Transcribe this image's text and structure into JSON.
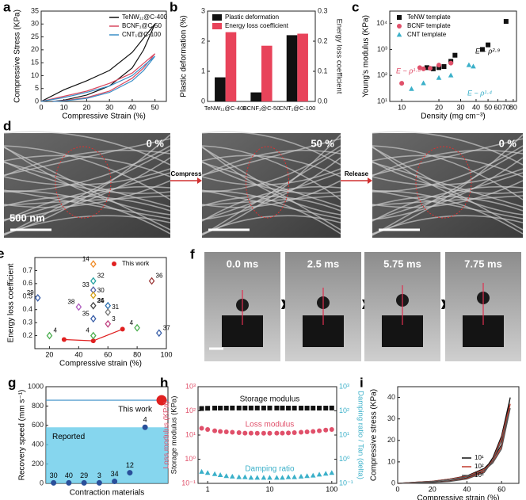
{
  "chart_data": [
    {
      "type": "line",
      "label": "a",
      "xlabel": "Compressive Strain (%)",
      "ylabel": "Compressive Stress (KPa)",
      "xlim": [
        0,
        55
      ],
      "xticks": [
        0,
        10,
        20,
        30,
        40,
        50
      ],
      "ylim": [
        0,
        35
      ],
      "yticks": [
        0,
        5,
        10,
        15,
        20,
        25,
        30,
        35
      ],
      "legend": "upper right",
      "series": [
        {
          "name": "TeNW₁₁@C-400",
          "color": "#111111",
          "x": [
            0,
            10,
            20,
            30,
            40,
            50,
            45,
            40,
            30,
            20,
            10,
            5
          ],
          "values": [
            0,
            4.5,
            8,
            12,
            19,
            30,
            20,
            13,
            6,
            2.5,
            0.5,
            0
          ]
        },
        {
          "name": "BCNF₁@C-50",
          "color": "#d9485f",
          "x": [
            0,
            10,
            20,
            30,
            40,
            50,
            45,
            40,
            30,
            20,
            10,
            5
          ],
          "values": [
            0,
            2,
            4,
            7,
            11,
            18.5,
            13,
            9,
            4,
            1.5,
            0.3,
            0
          ]
        },
        {
          "name": "CNT₁@C-100",
          "color": "#3a8fc7",
          "x": [
            0,
            10,
            20,
            30,
            40,
            50,
            45,
            40,
            30,
            20,
            10,
            5
          ],
          "values": [
            0,
            1.5,
            3.5,
            6,
            10,
            17.5,
            12,
            8,
            3.5,
            1.2,
            0.2,
            0
          ]
        }
      ]
    },
    {
      "type": "bar",
      "label": "b",
      "ylabel": "Plastic deformation (%)",
      "y2label": "Energy loss coefficient",
      "categories": [
        "TeNW₁₁@C-400",
        "BCNF₁@C-50",
        "CNT₁@C-100"
      ],
      "ylim": [
        0,
        3
      ],
      "yticks": [
        0,
        1,
        2,
        3
      ],
      "y2lim": [
        0,
        0.3
      ],
      "y2ticks": [
        {
          "value": 0,
          "label": "0.0"
        },
        0.1,
        0.2,
        0.3
      ],
      "legend": "upper left",
      "series": [
        {
          "name": "Plastic deformation",
          "color": "#111111",
          "values": [
            0.8,
            0.3,
            2.2
          ]
        },
        {
          "name": "Energy loss coefficient",
          "color": "#e8435a",
          "axis": "y2",
          "values": [
            0.23,
            0.185,
            0.225
          ]
        }
      ]
    },
    {
      "type": "scatter",
      "label": "c",
      "xlabel": "Density (mg cm⁻³)",
      "ylabel": "Young's modulus (KPa)",
      "xscale": "log",
      "yscale": "log",
      "xlim": [
        8,
        85
      ],
      "xticks": [
        10,
        20,
        30,
        40,
        50,
        60,
        70,
        80
      ],
      "ylim": [
        10,
        30000
      ],
      "yticks": [
        {
          "value": 10,
          "label": "10¹"
        },
        {
          "value": 100,
          "label": "10²"
        },
        {
          "value": 1000,
          "label": "10³"
        },
        {
          "value": 10000,
          "label": "10⁴"
        }
      ],
      "legend": "upper left",
      "series": [
        {
          "name": "TeNW template",
          "color": "#111111",
          "marker": "square",
          "x": [
            16,
            18,
            20,
            22,
            25,
            27,
            45,
            50,
            70
          ],
          "values": [
            200,
            180,
            200,
            220,
            350,
            600,
            1000,
            1500,
            12000
          ]
        },
        {
          "name": "BCNF template",
          "color": "#e0506a",
          "marker": "circle",
          "x": [
            10,
            14,
            15,
            17,
            20,
            25
          ],
          "values": [
            50,
            200,
            180,
            190,
            250,
            300
          ]
        },
        {
          "name": "CNT template",
          "color": "#3bb0c9",
          "marker": "triangle",
          "x": [
            12,
            15,
            20,
            25,
            35,
            38
          ],
          "values": [
            30,
            50,
            80,
            100,
            250,
            220
          ]
        }
      ],
      "annotations": [
        {
          "text": "E ~ ρ²·⁹",
          "color": "#111111"
        },
        {
          "text": "E ~ ρ¹·⁸",
          "color": "#e0506a"
        },
        {
          "text": "E ~ ρ¹·⁴",
          "color": "#3bb0c9"
        }
      ]
    },
    {
      "type": "scatter",
      "label": "e",
      "xlabel": "Compressive strain (%)",
      "ylabel": "Energy loss coefficient",
      "xlim": [
        10,
        100
      ],
      "xticks": [
        20,
        40,
        60,
        80,
        100
      ],
      "ylim": [
        0.1,
        0.8
      ],
      "yticks": [
        0.2,
        0.3,
        0.4,
        0.5,
        0.6,
        0.7
      ],
      "legend": "upper right",
      "series": [
        {
          "name": "This work",
          "color": "#e02020",
          "marker": "circle",
          "line": true,
          "x": [
            30,
            50,
            70
          ],
          "values": [
            0.17,
            0.16,
            0.25
          ]
        },
        {
          "marker": "diamond",
          "x": [
            12,
            20,
            50,
            50,
            50,
            50,
            40,
            50,
            60,
            60,
            50,
            60,
            50,
            90,
            80,
            95
          ],
          "values": [
            0.49,
            0.2,
            0.75,
            0.62,
            0.55,
            0.51,
            0.42,
            0.43,
            0.43,
            0.38,
            0.33,
            0.29,
            0.2,
            0.62,
            0.26,
            0.22
          ],
          "point_labels": [
            "29",
            "4",
            "14",
            "32",
            "33",
            "30",
            "38",
            "26",
            "34",
            "31",
            "35",
            "3",
            "4",
            "36",
            "4",
            "37"
          ],
          "colors": [
            "#3a5fa8",
            "#4caf50",
            "#f08a24",
            "#2aa3a3",
            "#5560a8",
            "#d4a017",
            "#b05fc0",
            "#444444",
            "#2a6fb0",
            "#777777",
            "#3a5fa8",
            "#c04080",
            "#4caf50",
            "#a04040",
            "#4caf50",
            "#3a5fa8"
          ]
        }
      ]
    },
    {
      "type": "scatter",
      "label": "g",
      "xlabel": "Contraction materials",
      "ylabel": "Recovery speed (mm s⁻¹)",
      "ylim": [
        0,
        1000
      ],
      "yticks": [
        0,
        200,
        400,
        600,
        800,
        1000
      ],
      "categories": [
        "30",
        "40",
        "29",
        "3",
        "34",
        "12",
        "4"
      ],
      "values": [
        5,
        5,
        5,
        5,
        20,
        110,
        580
      ],
      "color": "#2a4f9a",
      "region_label": "Reported",
      "region_color": "#5ec8e8",
      "this_work": {
        "name": "This work",
        "value": 860,
        "color": "#e02020"
      }
    },
    {
      "type": "scatter",
      "label": "h",
      "ylabel": [
        "Loss modulus (KPa)",
        "Storage modulus (KPa)"
      ],
      "ylabel_colors": [
        "#e0506a",
        "#111111"
      ],
      "y2label": "Damping ratio / Tan (delta)",
      "y2label_color": "#3bb0c9",
      "xscale": "log",
      "yscale": "log",
      "y2scale": "log",
      "legend": "inline",
      "xlim": [
        0.7,
        120
      ],
      "xticks": [
        1,
        10,
        100
      ],
      "ylim": [
        0.1,
        1000
      ],
      "yticks": [
        {
          "value": 0.1,
          "label": "10⁻¹"
        },
        {
          "value": 1,
          "label": "10⁰"
        },
        {
          "value": 10,
          "label": "10¹"
        },
        {
          "value": 100,
          "label": "10²"
        },
        {
          "value": 1000,
          "label": "10³"
        }
      ],
      "y2lim": [
        0.1,
        1000
      ],
      "y2ticks": [
        {
          "value": 0.1,
          "label": "10⁻¹"
        },
        {
          "value": 1,
          "label": "10⁰"
        },
        {
          "value": 10,
          "label": "10¹"
        },
        {
          "value": 100,
          "label": "10²"
        },
        {
          "value": 1000,
          "label": "10³"
        }
      ],
      "series": [
        {
          "name": "Storage modulus",
          "color": "#111111",
          "marker": "square",
          "x": [
            0.8,
            1,
            1.3,
            1.6,
            2,
            2.5,
            3.2,
            4,
            5,
            6.3,
            8,
            10,
            13,
            16,
            20,
            25,
            32,
            40,
            50,
            63,
            80,
            100
          ],
          "values": [
            125,
            128,
            130,
            130,
            130,
            131,
            131,
            131,
            131,
            131,
            131,
            131,
            131,
            131,
            130,
            130,
            130,
            130,
            130,
            130,
            130,
            131
          ]
        },
        {
          "name": "Loss modulus",
          "color": "#e0506a",
          "marker": "circle",
          "x": [
            0.8,
            1,
            1.3,
            1.6,
            2,
            2.5,
            3.2,
            4,
            5,
            6.3,
            8,
            10,
            13,
            16,
            20,
            25,
            32,
            40,
            50,
            63,
            80,
            100
          ],
          "values": [
            19,
            17,
            15,
            14,
            13.5,
            13,
            12.5,
            12,
            12,
            11.8,
            11.8,
            11.8,
            12,
            12,
            12.2,
            12.5,
            13,
            13.5,
            14,
            15,
            16,
            17
          ]
        },
        {
          "name": "Damping ratio",
          "color": "#3bb0c9",
          "marker": "triangle",
          "axis": "y2",
          "x": [
            0.8,
            1,
            1.3,
            1.6,
            2,
            2.5,
            3.2,
            4,
            5,
            6.3,
            8,
            10,
            13,
            16,
            20,
            25,
            32,
            40,
            50,
            63,
            80,
            100
          ],
          "values": [
            0.3,
            0.27,
            0.24,
            0.22,
            0.2,
            0.19,
            0.18,
            0.18,
            0.17,
            0.17,
            0.17,
            0.17,
            0.17,
            0.17,
            0.18,
            0.18,
            0.19,
            0.2,
            0.21,
            0.23,
            0.25,
            0.27
          ]
        }
      ]
    },
    {
      "type": "line",
      "label": "i",
      "xlabel": "Compressive strain (%)",
      "ylabel": "Compressive stress (KPa)",
      "xlim": [
        0,
        70
      ],
      "xticks": [
        0,
        20,
        40,
        60
      ],
      "ylim": [
        0,
        45
      ],
      "yticks": [
        0,
        10,
        20,
        30,
        40
      ],
      "legend": "lower right",
      "series": [
        {
          "name": "10¹",
          "color": "#111111",
          "x": [
            0,
            10,
            20,
            30,
            40,
            50,
            55,
            60,
            65,
            60,
            55,
            50,
            40,
            30,
            20,
            10,
            0
          ],
          "values": [
            0,
            0.5,
            1,
            2,
            3.5,
            7,
            11,
            18,
            40,
            22,
            12,
            6,
            2.5,
            1.2,
            0.5,
            0.2,
            0
          ]
        },
        {
          "name": "10²",
          "color": "#c0392b",
          "x": [
            0,
            10,
            20,
            30,
            40,
            50,
            55,
            60,
            65,
            60,
            55,
            50,
            40,
            30,
            20,
            10,
            0
          ],
          "values": [
            0,
            0.5,
            1,
            2,
            3.3,
            6.5,
            10,
            17,
            37,
            21,
            11,
            5.5,
            2.3,
            1,
            0.4,
            0.2,
            0
          ]
        },
        {
          "name": "10³",
          "color": "#555555",
          "x": [
            0,
            10,
            20,
            30,
            40,
            50,
            55,
            60,
            65,
            60,
            55,
            50,
            40,
            30,
            20,
            10,
            0
          ],
          "values": [
            0,
            0.4,
            0.9,
            1.8,
            3,
            6,
            9.5,
            16,
            35,
            20,
            10.5,
            5,
            2,
            0.9,
            0.4,
            0.1,
            0
          ]
        }
      ]
    }
  ],
  "images": {
    "d": {
      "label": "d",
      "frames": [
        "0 %",
        "50 %",
        "0 %"
      ],
      "arrows": [
        "Compress",
        "Release"
      ],
      "scale": "500 nm"
    },
    "f": {
      "label": "f",
      "frames": [
        "0.0 ms",
        "2.5 ms",
        "5.75 ms",
        "7.75 ms"
      ]
    }
  }
}
